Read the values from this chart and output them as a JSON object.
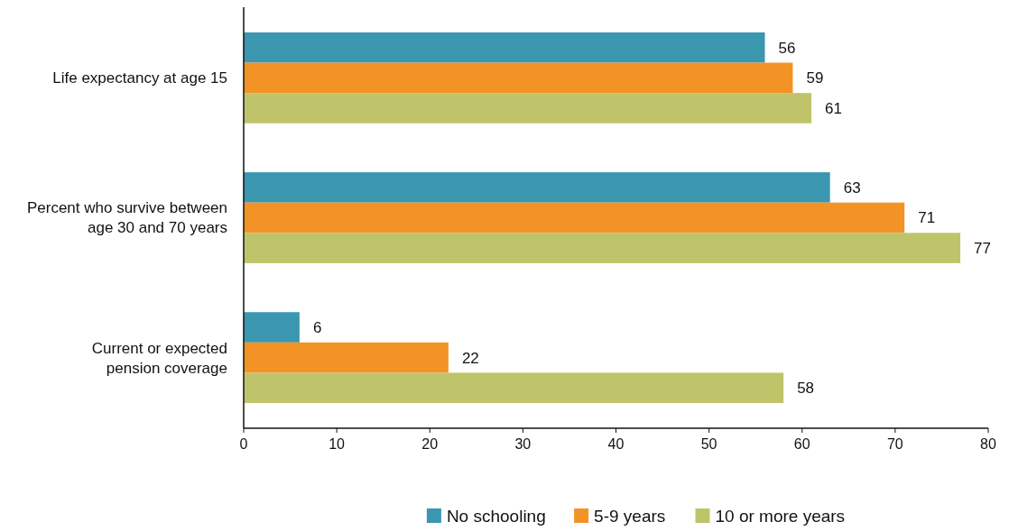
{
  "chart_data": {
    "type": "bar",
    "orientation": "horizontal",
    "categories": [
      "Life expectancy at age 15",
      "Percent who survive between age 30 and 70 years",
      "Current or expected pension coverage"
    ],
    "series": [
      {
        "name": "No schooling",
        "color": "#3b97b0",
        "values": [
          56,
          63,
          6
        ]
      },
      {
        "name": "5-9 years",
        "color": "#f39325",
        "values": [
          59,
          71,
          22
        ]
      },
      {
        "name": "10 or more years",
        "color": "#bfc46a",
        "values": [
          61,
          77,
          58
        ]
      }
    ],
    "xlim": [
      0,
      80
    ],
    "xticks": [
      0,
      10,
      20,
      30,
      40,
      50,
      60,
      70,
      80
    ],
    "data_labels": true,
    "legend": "bottom",
    "grid": false
  }
}
